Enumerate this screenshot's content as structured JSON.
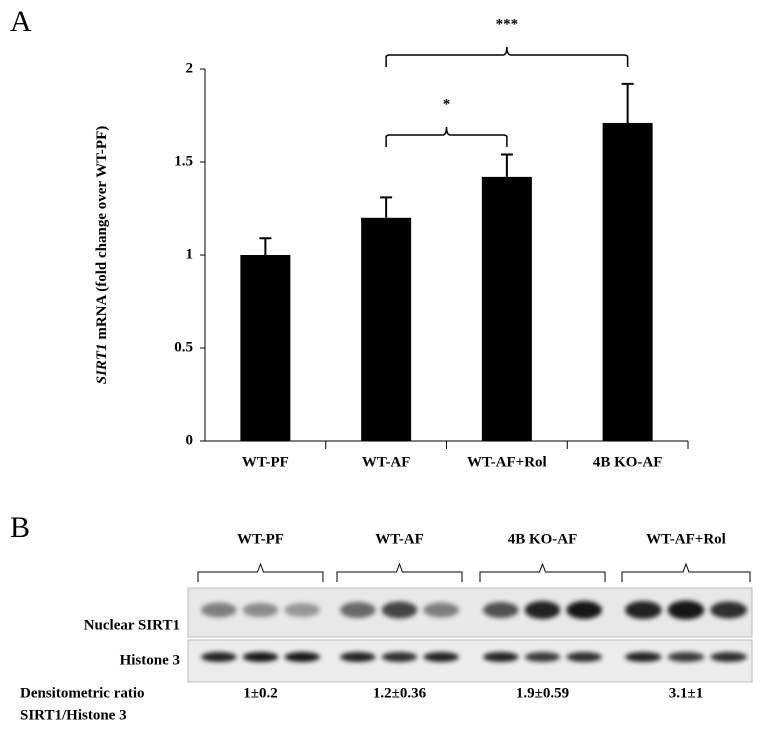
{
  "chart_data": {
    "type": "bar",
    "panel_label": "A",
    "ylabel_italic": "SIRT1",
    "ylabel": "mRNA (fold change over WT-PF)",
    "categories": [
      "WT-PF",
      "WT-AF",
      "WT-AF+Rol",
      "4B KO-AF"
    ],
    "values": [
      1.0,
      1.2,
      1.42,
      1.71
    ],
    "errors": [
      0.09,
      0.11,
      0.12,
      0.21
    ],
    "color": "#000000",
    "ylim": [
      0,
      2
    ],
    "yticks": [
      0,
      0.5,
      1,
      1.5,
      2
    ],
    "annotations": [
      {
        "label": "*",
        "from": 1,
        "to": 2
      },
      {
        "label": "***",
        "from": 1,
        "to": 3
      }
    ]
  },
  "blot": {
    "panel_label": "B",
    "groups": [
      "WT-PF",
      "WT-AF",
      "4B KO-AF",
      "WT-AF+Rol"
    ],
    "rows": [
      "Nuclear SIRT1",
      "Histone 3"
    ],
    "ratio_label": [
      "Densitometric ratio",
      "SIRT1/Histone 3"
    ],
    "ratios": [
      "1±0.2",
      "1.2±0.36",
      "1.9±0.59",
      "3.1±1"
    ]
  }
}
